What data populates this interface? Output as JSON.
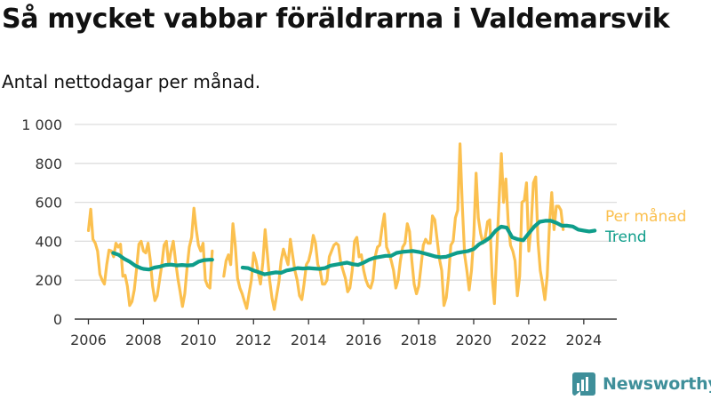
{
  "title": "Så mycket vabbar föräldrarna i Valdemarsvik",
  "subtitle": "Antal nettodagar per månad.",
  "brand": {
    "name": "Newsworthy",
    "logo_icon": "newsworthy-chart-logo-icon"
  },
  "colors": {
    "monthly": "#fbc04f",
    "trend": "#0e9d8a",
    "grid": "#dddddd",
    "axis": "#333333",
    "brand": "#3f8f9a"
  },
  "chart_data": {
    "type": "line",
    "title": "Så mycket vabbar föräldrarna i Valdemarsvik",
    "subtitle": "Antal nettodagar per månad.",
    "xlabel": "",
    "ylabel": "",
    "xlim": [
      2005.5,
      2025.2
    ],
    "ylim": [
      0,
      1000
    ],
    "yticks": [
      0,
      200,
      400,
      600,
      800,
      1000
    ],
    "ytick_labels": [
      "0",
      "200",
      "400",
      "600",
      "800",
      "1 000"
    ],
    "xticks": [
      2006,
      2008,
      2010,
      2012,
      2014,
      2016,
      2018,
      2020,
      2022,
      2024
    ],
    "xtick_labels": [
      "2006",
      "2008",
      "2010",
      "2012",
      "2014",
      "2016",
      "2018",
      "2020",
      "2022",
      "2024"
    ],
    "grid": true,
    "legend": "right end of lines",
    "series": [
      {
        "name": "Per månad",
        "color": "#fbc04f",
        "segments": [
          {
            "start": 2006.0,
            "step": 0.083333,
            "values": [
              455,
              565,
              410,
              390,
              350,
              230,
              200,
              180,
              280,
              355,
              350,
              320,
              390,
              370,
              385,
              220,
              225,
              170,
              70,
              90,
              150,
              260,
              385,
              400,
              350,
              340,
              390,
              300,
              170,
              95,
              120,
              200,
              280,
              380,
              400,
              280,
              350,
              400,
              300,
              210,
              140,
              65,
              130,
              260,
              370,
              420,
              570,
              460,
              380,
              350,
              390,
              200,
              170,
              160,
              350
            ]
          },
          {
            "start": 2010.92,
            "step": 0.083333,
            "values": [
              220,
              300,
              330,
              280,
              490,
              380,
              210,
              160,
              130,
              90,
              55,
              130,
              200,
              340,
              300,
              240,
              180,
              290,
              460,
              330,
              200,
              110,
              50,
              120,
              190,
              300,
              360,
              320,
              280,
              410,
              330,
              250,
              200,
              120,
              100,
              180,
              280,
              300,
              350,
              430,
              390,
              280,
              250,
              180,
              180,
              200,
              320,
              350,
              380,
              390,
              380,
              290,
              250,
              210,
              140,
              160,
              250,
              400,
              420,
              320,
              330,
              250,
              200,
              170,
              160,
              200,
              320,
              370,
              380,
              470,
              540,
              370,
              340,
              300,
              250,
              160,
              200,
              300,
              370,
              390,
              490,
              450,
              300,
              180,
              130,
              170,
              270,
              380,
              410,
              390,
              390,
              530,
              510,
              410,
              310,
              250,
              70,
              110,
              220,
              380,
              400,
              520,
              560,
              900,
              580,
              330,
              250,
              150,
              250,
              430,
              750,
              520,
              440,
              390,
              420,
              500,
              510,
              220,
              80,
              350,
              600,
              850,
              600,
              720,
              500,
              380,
              350,
              300,
              120,
              220,
              600,
              610,
              700,
              350,
              480,
              700,
              730,
              400,
              250,
              180,
              100,
              220,
              480,
              650,
              460,
              580,
              580,
              560,
              460
            ]
          }
        ]
      },
      {
        "name": "Trend",
        "color": "#0e9d8a",
        "segments": [
          {
            "points": [
              [
                2006.9,
                340
              ],
              [
                2007.1,
                330
              ],
              [
                2007.3,
                310
              ],
              [
                2007.5,
                295
              ],
              [
                2007.7,
                275
              ],
              [
                2007.9,
                262
              ],
              [
                2008.0,
                258
              ],
              [
                2008.2,
                255
              ],
              [
                2008.4,
                265
              ],
              [
                2008.6,
                270
              ],
              [
                2008.8,
                278
              ],
              [
                2009.0,
                280
              ],
              [
                2009.2,
                276
              ],
              [
                2009.4,
                278
              ],
              [
                2009.6,
                276
              ],
              [
                2009.8,
                278
              ],
              [
                2010.0,
                295
              ],
              [
                2010.2,
                303
              ],
              [
                2010.4,
                305
              ],
              [
                2010.5,
                305
              ]
            ]
          },
          {
            "points": [
              [
                2011.6,
                265
              ],
              [
                2011.8,
                262
              ],
              [
                2012.0,
                250
              ],
              [
                2012.2,
                240
              ],
              [
                2012.4,
                230
              ],
              [
                2012.6,
                235
              ],
              [
                2012.8,
                240
              ],
              [
                2013.0,
                238
              ],
              [
                2013.2,
                250
              ],
              [
                2013.4,
                255
              ],
              [
                2013.6,
                262
              ],
              [
                2013.8,
                260
              ],
              [
                2014.0,
                262
              ],
              [
                2014.2,
                260
              ],
              [
                2014.4,
                258
              ],
              [
                2014.6,
                262
              ],
              [
                2014.8,
                275
              ],
              [
                2015.0,
                280
              ],
              [
                2015.2,
                285
              ],
              [
                2015.4,
                290
              ],
              [
                2015.6,
                282
              ],
              [
                2015.8,
                278
              ],
              [
                2016.0,
                290
              ],
              [
                2016.2,
                305
              ],
              [
                2016.4,
                315
              ],
              [
                2016.6,
                320
              ],
              [
                2016.8,
                325
              ],
              [
                2017.0,
                325
              ],
              [
                2017.2,
                340
              ],
              [
                2017.4,
                345
              ],
              [
                2017.6,
                348
              ],
              [
                2017.8,
                350
              ],
              [
                2018.0,
                345
              ],
              [
                2018.2,
                338
              ],
              [
                2018.4,
                330
              ],
              [
                2018.6,
                322
              ],
              [
                2018.8,
                318
              ],
              [
                2019.0,
                320
              ],
              [
                2019.2,
                330
              ],
              [
                2019.4,
                340
              ],
              [
                2019.6,
                345
              ],
              [
                2019.8,
                350
              ],
              [
                2020.0,
                360
              ],
              [
                2020.2,
                385
              ],
              [
                2020.4,
                400
              ],
              [
                2020.6,
                420
              ],
              [
                2020.8,
                455
              ],
              [
                2021.0,
                475
              ],
              [
                2021.2,
                470
              ],
              [
                2021.4,
                420
              ],
              [
                2021.6,
                410
              ],
              [
                2021.8,
                405
              ],
              [
                2022.0,
                440
              ],
              [
                2022.2,
                475
              ],
              [
                2022.4,
                500
              ],
              [
                2022.6,
                505
              ],
              [
                2022.8,
                505
              ],
              [
                2023.0,
                495
              ],
              [
                2023.2,
                480
              ],
              [
                2023.4,
                480
              ],
              [
                2023.6,
                476
              ],
              [
                2023.8,
                460
              ],
              [
                2024.0,
                455
              ],
              [
                2024.2,
                450
              ],
              [
                2024.4,
                455
              ]
            ]
          }
        ]
      }
    ]
  }
}
